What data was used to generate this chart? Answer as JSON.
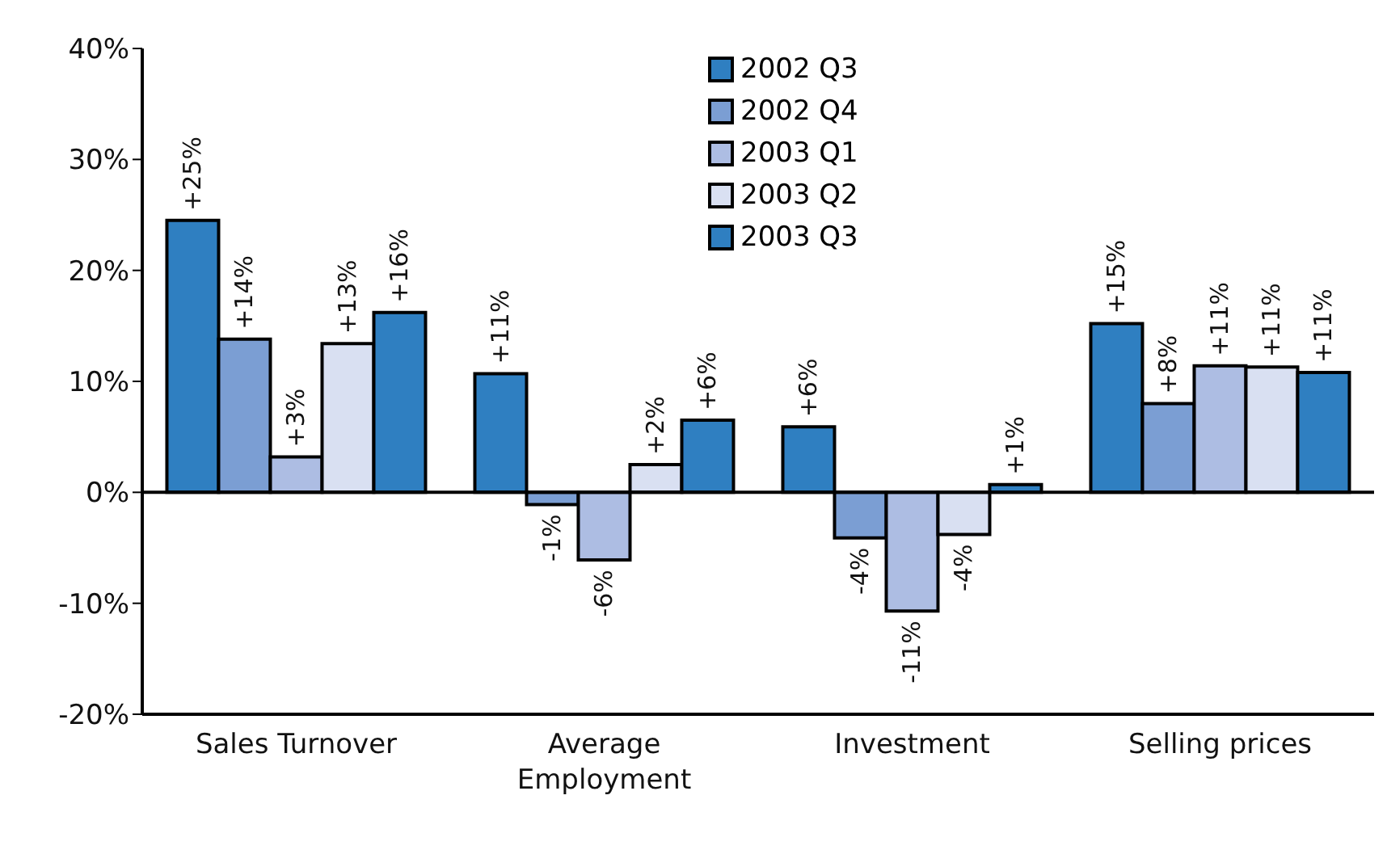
{
  "chart_data": {
    "type": "bar",
    "categories": [
      "Sales Turnover",
      "Average Employment",
      "Investment",
      "Selling prices"
    ],
    "series": [
      {
        "name": "2002 Q3",
        "color": "#2f7fc1",
        "values": [
          24.5,
          10.7,
          5.9,
          15.2
        ],
        "value_labels": [
          "+25%",
          "+11%",
          "+6%",
          "+15%"
        ]
      },
      {
        "name": "2002 Q4",
        "color": "#7b9ed3",
        "values": [
          13.8,
          -1.1,
          -4.1,
          8.0
        ],
        "value_labels": [
          "+14%",
          "-1%",
          "-4%",
          "+8%"
        ]
      },
      {
        "name": "2003 Q1",
        "color": "#adbde3",
        "values": [
          3.2,
          -6.1,
          -10.7,
          11.4
        ],
        "value_labels": [
          "+3%",
          "-6%",
          "-11%",
          "+11%"
        ]
      },
      {
        "name": "2003 Q2",
        "color": "#d9e0f2",
        "values": [
          13.4,
          2.5,
          -3.8,
          11.3
        ],
        "value_labels": [
          "+13%",
          "+2%",
          "-4%",
          "+11%"
        ]
      },
      {
        "name": "2003 Q3",
        "color": "#2f7fc1",
        "values": [
          16.2,
          6.5,
          0.7,
          10.8
        ],
        "value_labels": [
          "+16%",
          "+6%",
          "+1%",
          "+11%"
        ]
      }
    ],
    "ylim": [
      -20,
      40
    ],
    "yticks": [
      {
        "value": -20,
        "label": "-20%"
      },
      {
        "value": -10,
        "label": "-10%"
      },
      {
        "value": 0,
        "label": "0%"
      },
      {
        "value": 10,
        "label": "10%"
      },
      {
        "value": 20,
        "label": "20%"
      },
      {
        "value": 30,
        "label": "30%"
      },
      {
        "value": 40,
        "label": "40%"
      }
    ],
    "ref_lines": [
      {
        "axis": "y",
        "value": 0,
        "label": null,
        "color": "#000000"
      }
    ],
    "grid": false,
    "legend": "top"
  }
}
